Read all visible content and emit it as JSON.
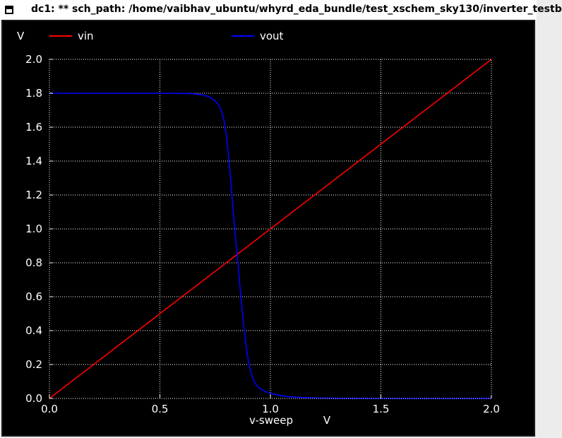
{
  "window": {
    "title": "dc1: ** sch_path: /home/vaibhav_ubuntu/whyrd_eda_bundle/test_xschem_sky130/inverter_testb"
  },
  "chart_data": {
    "type": "line",
    "ylabel": "V",
    "xlabel": "v-sweep",
    "xunit": "V",
    "xlim": [
      0.0,
      2.0
    ],
    "ylim": [
      0.0,
      2.0
    ],
    "xticks": [
      "0.0",
      "0.5",
      "1.0",
      "1.5",
      "2.0"
    ],
    "xtick_values": [
      0.0,
      0.5,
      1.0,
      1.5,
      2.0
    ],
    "yticks": [
      "0.0",
      "0.2",
      "0.4",
      "0.6",
      "0.8",
      "1.0",
      "1.2",
      "1.4",
      "1.6",
      "1.8",
      "2.0"
    ],
    "ytick_values": [
      0.0,
      0.2,
      0.4,
      0.6,
      0.8,
      1.0,
      1.2,
      1.4,
      1.6,
      1.8,
      2.0
    ],
    "grid": true,
    "legend_position": "top",
    "background": "#000000",
    "grid_color": "#ffffff",
    "text_color": "#ffffff",
    "series": [
      {
        "name": "vin",
        "color": "#ff0000",
        "x": [
          0.0,
          2.0
        ],
        "y": [
          0.0,
          2.0
        ]
      },
      {
        "name": "vout",
        "color": "#0000ff",
        "x": [
          0.0,
          0.5,
          0.6,
          0.65,
          0.68,
          0.7,
          0.72,
          0.74,
          0.75,
          0.76,
          0.77,
          0.78,
          0.79,
          0.8,
          0.81,
          0.82,
          0.83,
          0.84,
          0.85,
          0.86,
          0.87,
          0.88,
          0.89,
          0.9,
          0.91,
          0.92,
          0.93,
          0.94,
          0.95,
          0.97,
          1.0,
          1.05,
          1.1,
          1.2,
          1.3,
          1.5,
          2.0
        ],
        "y": [
          1.8,
          1.8,
          1.799,
          1.797,
          1.793,
          1.788,
          1.78,
          1.766,
          1.755,
          1.74,
          1.72,
          1.69,
          1.64,
          1.56,
          1.44,
          1.29,
          1.13,
          0.98,
          0.84,
          0.69,
          0.55,
          0.42,
          0.31,
          0.22,
          0.16,
          0.12,
          0.09,
          0.075,
          0.06,
          0.045,
          0.03,
          0.016,
          0.008,
          0.003,
          0.001,
          0.0,
          0.0
        ]
      }
    ]
  }
}
